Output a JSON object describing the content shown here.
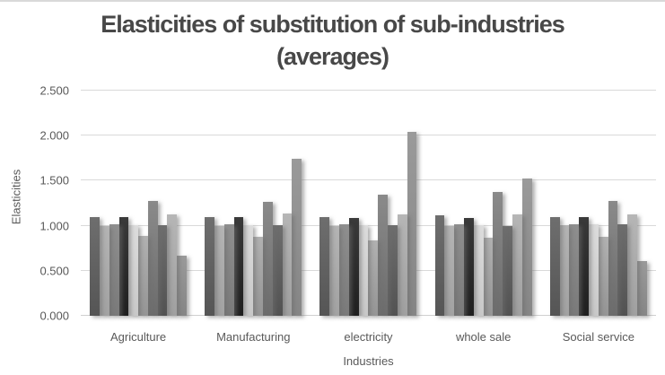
{
  "chart_data": {
    "type": "bar",
    "title": "Elasticities of substitution of sub-industries (averages)",
    "title_lines": [
      "Elasticities of substitution of sub-industries",
      "(averages)"
    ],
    "x_axis_title": "Industries",
    "y_axis_title": "Elasticities",
    "categories": [
      "Agriculture",
      "Manufacturing",
      "electricity",
      "whole sale",
      "Social service"
    ],
    "y_ticks": [
      "2.500",
      "2.000",
      "1.500",
      "1.000",
      "0.500",
      "0.000"
    ],
    "ylim": [
      0,
      2.5
    ],
    "grid": true,
    "legend": "none",
    "series": [
      {
        "color_top": "#6e6e6e",
        "color_bottom": "#555555",
        "values": [
          1.1,
          1.1,
          1.1,
          1.12,
          1.1
        ]
      },
      {
        "color_top": "#b4b4b4",
        "color_bottom": "#a2a2a2",
        "values": [
          1.0,
          1.0,
          1.0,
          1.0,
          1.01
        ]
      },
      {
        "color_top": "#8f8f8f",
        "color_bottom": "#7a7a7a",
        "values": [
          1.02,
          1.02,
          1.02,
          1.02,
          1.02
        ]
      },
      {
        "color_top": "#3a3a3a",
        "color_bottom": "#1f1f1f",
        "values": [
          1.1,
          1.1,
          1.09,
          1.09,
          1.1
        ]
      },
      {
        "color_top": "#dcdcdc",
        "color_bottom": "#c8c8c8",
        "values": [
          1.01,
          1.01,
          1.01,
          1.01,
          1.02
        ]
      },
      {
        "color_top": "#b1b1b1",
        "color_bottom": "#959595",
        "values": [
          0.89,
          0.88,
          0.84,
          0.87,
          0.88
        ]
      },
      {
        "color_top": "#8a8a8a",
        "color_bottom": "#6c6c6c",
        "values": [
          1.28,
          1.27,
          1.34,
          1.37,
          1.28
        ]
      },
      {
        "color_top": "#6e6e6e",
        "color_bottom": "#525252",
        "values": [
          1.01,
          1.01,
          1.01,
          1.0,
          1.02
        ]
      },
      {
        "color_top": "#b6b6b6",
        "color_bottom": "#a0a0a0",
        "values": [
          1.13,
          1.14,
          1.13,
          1.13,
          1.13
        ]
      },
      {
        "color_top": "#9a9a9a",
        "color_bottom": "#868686",
        "values": [
          0.67,
          1.74,
          2.04,
          1.52,
          0.61
        ]
      }
    ]
  }
}
